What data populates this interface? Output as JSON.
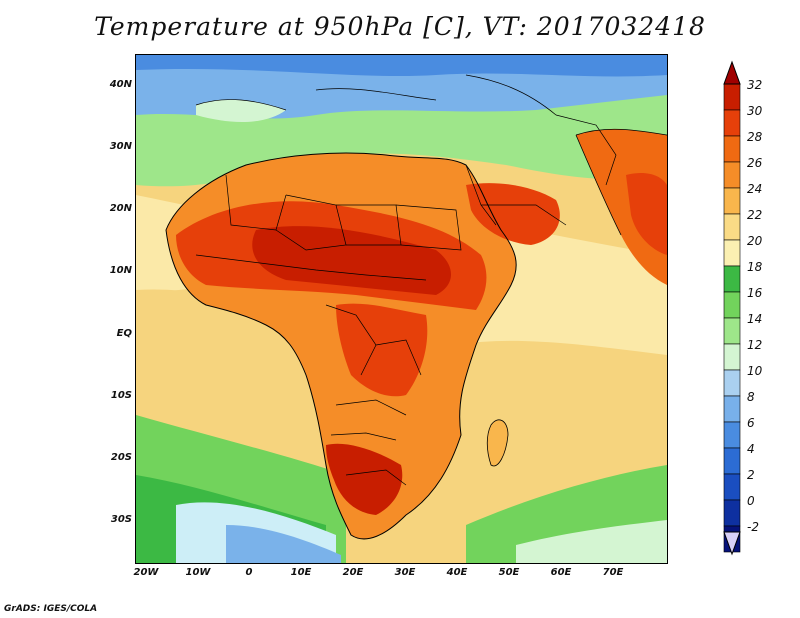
{
  "title": "Temperature at 950hPa [C], VT: 2017032418",
  "credit": "GrADS: IGES/COLA",
  "axes": {
    "lat_labels": [
      "40N",
      "30N",
      "20N",
      "10N",
      "EQ",
      "10S",
      "20S",
      "30S"
    ],
    "lon_labels": [
      "20W",
      "10W",
      "0",
      "10E",
      "20E",
      "30E",
      "40E",
      "50E",
      "60E",
      "70E"
    ]
  },
  "colorbar": {
    "labels": [
      "32",
      "30",
      "28",
      "26",
      "24",
      "22",
      "20",
      "18",
      "16",
      "14",
      "12",
      "10",
      "8",
      "6",
      "4",
      "2",
      "0",
      "-2"
    ],
    "colors": [
      "#c81e00",
      "#e6400a",
      "#f06a12",
      "#f58d28",
      "#f9b64c",
      "#fadb86",
      "#fbf0b2",
      "#3cb944",
      "#72d35c",
      "#9ee68a",
      "#d4f5d2",
      "#aad0f0",
      "#78b0ea",
      "#4a8ce0",
      "#2c6cd4",
      "#1a4ec0",
      "#0e30a0",
      "#06127a"
    ],
    "top_arrow_color": "#a00000",
    "bottom_arrow_color": "#d8d0f8"
  },
  "map_colors": {
    "ocean_warm": "#f6d47e",
    "ocean_mid": "#fbe9a8",
    "cool_green": "#7fd36a",
    "deep_green": "#3cb944",
    "pale_blue": "#cdeef7",
    "blue": "#7ab2ea",
    "hot": "#e6400a",
    "hottest": "#c81e00",
    "warm": "#f58d28"
  }
}
